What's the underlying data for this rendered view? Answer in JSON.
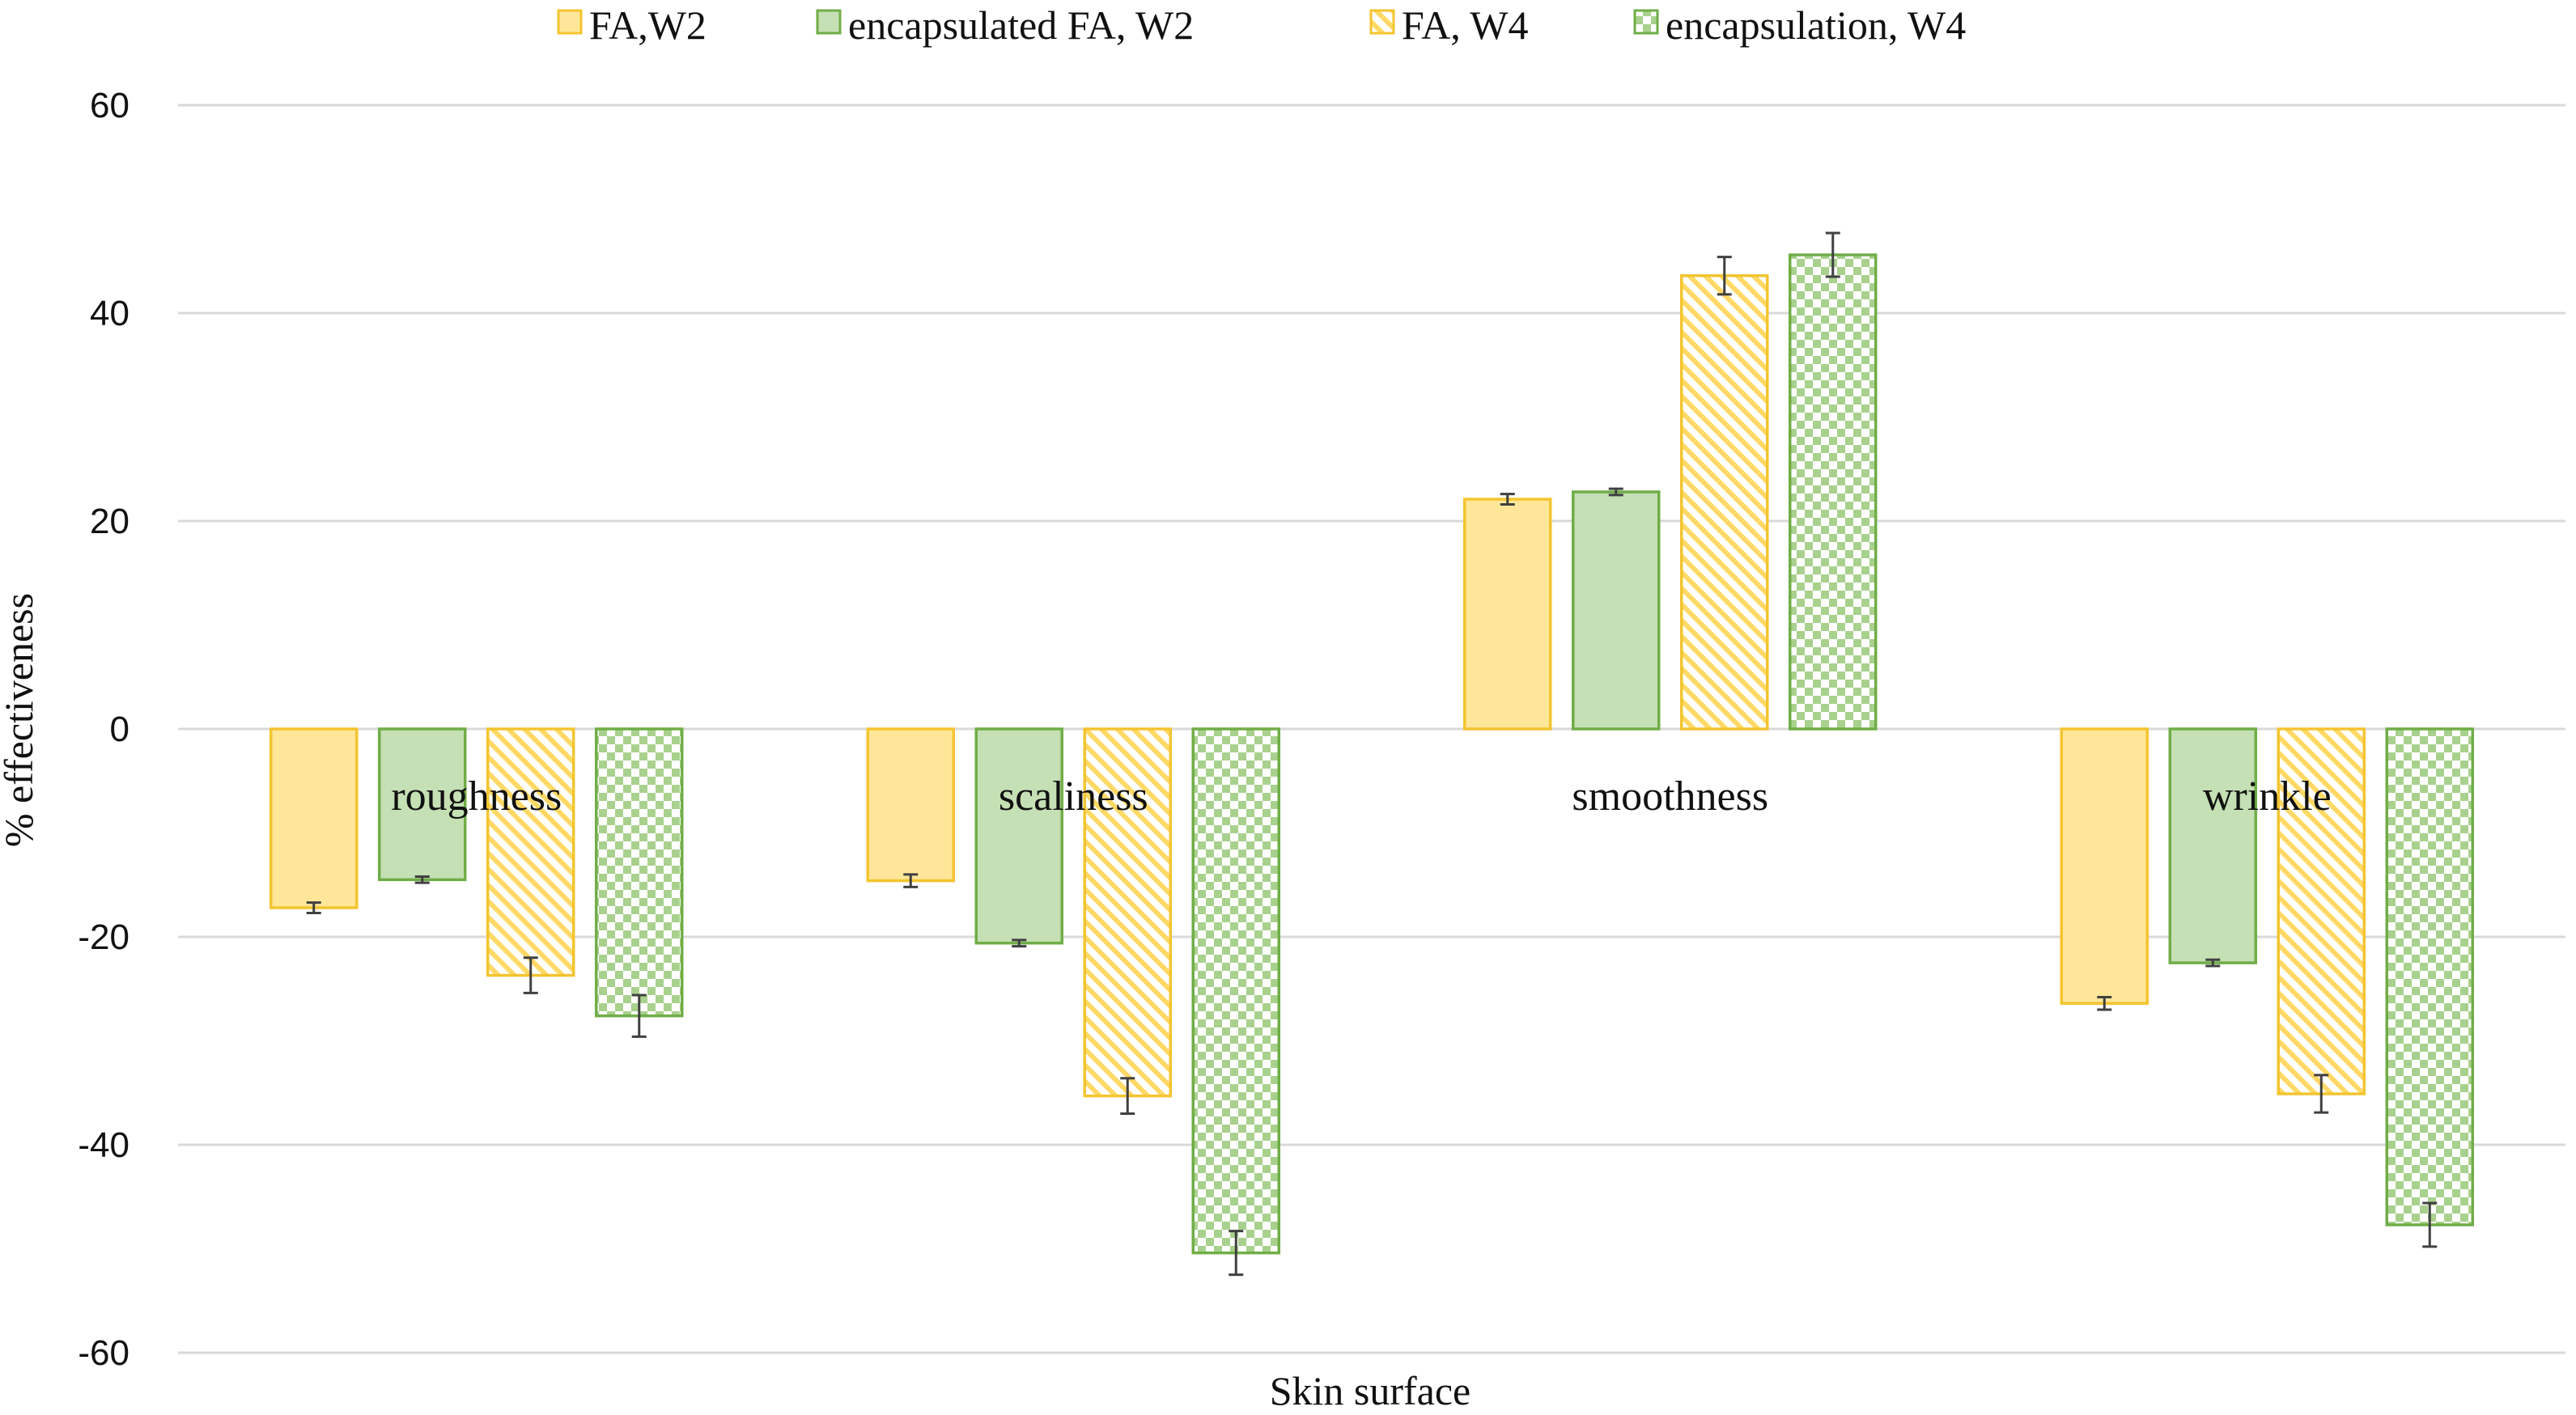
{
  "chart_data": {
    "type": "bar",
    "title": "",
    "xlabel": "Skin surface",
    "ylabel": "% effectiveness",
    "ylim": [
      -60,
      60
    ],
    "yticks": [
      60,
      40,
      20,
      0,
      -20,
      -40,
      -60
    ],
    "grid": true,
    "legend_position": "top",
    "categories": [
      "roughness",
      "scaliness",
      "smoothness",
      "wrinkle"
    ],
    "series": [
      {
        "name": "FA,W2",
        "values": [
          -17.2,
          -14.6,
          22.1,
          -26.4
        ],
        "errors": [
          0.5,
          0.6,
          0.5,
          0.6
        ],
        "fill": "#FFE699",
        "stroke": "#F4C430",
        "pattern": "solid"
      },
      {
        "name": "encapsulated FA, W2",
        "values": [
          -14.5,
          -20.6,
          22.8,
          -22.5
        ],
        "errors": [
          0.3,
          0.3,
          0.3,
          0.3
        ],
        "fill": "#C5E0B4",
        "stroke": "#70AD47",
        "pattern": "solid"
      },
      {
        "name": "FA, W4",
        "values": [
          -23.7,
          -35.3,
          43.6,
          -35.1
        ],
        "errors": [
          1.7,
          1.7,
          1.8,
          1.8
        ],
        "fill": "#FFE699",
        "stroke": "#F4C430",
        "pattern": "diagonal"
      },
      {
        "name": "encapsulation, W4",
        "values": [
          -27.6,
          -50.4,
          45.6,
          -47.7
        ],
        "errors": [
          2.0,
          2.1,
          2.1,
          2.1
        ],
        "fill": "#A9D18E",
        "stroke": "#70AD47",
        "pattern": "checker"
      }
    ]
  }
}
